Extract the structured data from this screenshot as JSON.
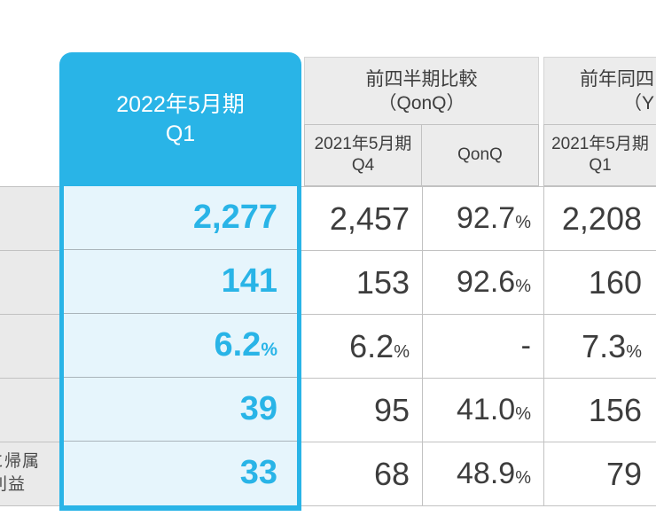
{
  "colors": {
    "accent": "#29b4e7",
    "highlight_bg": "#e6f5fc",
    "header_bg": "#ececec",
    "label_bg": "#eaeaea"
  },
  "highlight_column": {
    "header_line1": "2022年5月期",
    "header_line2": "Q1"
  },
  "comparison_sections": {
    "qonq": {
      "title_line1": "前四半期比較",
      "title_line2": "（QonQ）",
      "col_period_line1": "2021年5月期",
      "col_period_line2": "Q4",
      "col_ratio": "QonQ"
    },
    "yoy": {
      "title_line1_visible": "前年同四",
      "title_line2_visible": "（Y",
      "col_period_line1": "2021年5月期",
      "col_period_line2": "Q1"
    }
  },
  "row_labels_visible": {
    "row5_line1": "に帰属",
    "row5_line2": "利益"
  },
  "rows": [
    {
      "hl": "2,277",
      "q4": "2,457",
      "qonq": "92.7",
      "qonq_pct": "%",
      "yoy": "2,208"
    },
    {
      "hl": "141",
      "q4": "153",
      "qonq": "92.6",
      "qonq_pct": "%",
      "yoy": "160"
    },
    {
      "hl": "6.2",
      "hl_pct": "%",
      "q4": "6.2",
      "q4_pct": "%",
      "qonq": "-",
      "yoy": "7.3",
      "yoy_pct": "%"
    },
    {
      "hl": "39",
      "q4": "95",
      "qonq": "41.0",
      "qonq_pct": "%",
      "yoy": "156"
    },
    {
      "hl": "33",
      "q4": "68",
      "qonq": "48.9",
      "qonq_pct": "%",
      "yoy": "79"
    }
  ],
  "chart_data": {
    "type": "table",
    "columns": [
      "2022年5月期 Q1",
      "2021年5月期 Q4",
      "QonQ",
      "2021年5月期 Q1"
    ],
    "section_headers_visible": [
      "前四半期比較（QonQ）",
      "前年同四 / （Y (cut off at right edge)"
    ],
    "row_labels_visible": [
      "",
      "",
      "",
      "",
      "…に帰属 / …利益 (cut off at left edge)"
    ],
    "rows": [
      [
        "2,277",
        "2,457",
        "92.7%",
        "2,208"
      ],
      [
        "141",
        "153",
        "92.6%",
        "160"
      ],
      [
        "6.2%",
        "6.2%",
        "-",
        "7.3%"
      ],
      [
        "39",
        "95",
        "41.0%",
        "156"
      ],
      [
        "33",
        "68",
        "48.9%",
        "79"
      ]
    ]
  }
}
